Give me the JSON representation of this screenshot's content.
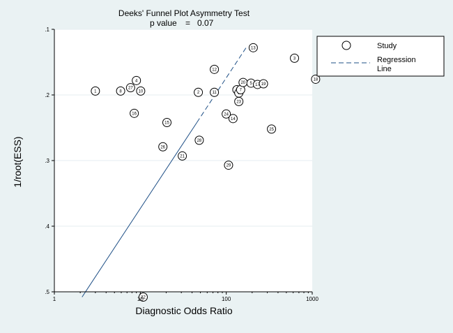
{
  "chart_data": {
    "type": "scatter",
    "title": "Deeks' Funnel Plot Asymmetry Test",
    "subtitle_label": "p value",
    "subtitle_sep": "=",
    "subtitle_value": "0.07",
    "xlabel": "Diagnostic Odds Ratio",
    "ylabel": "1/root(ESS)",
    "x_scale": "log10",
    "xlim": [
      1,
      1000
    ],
    "ylim": [
      0.1,
      0.5
    ],
    "y_reversed": true,
    "x_ticks": [
      1,
      10,
      100,
      1000
    ],
    "x_tick_labels": [
      "1",
      "10",
      "100",
      "1000"
    ],
    "y_ticks": [
      0.1,
      0.2,
      0.3,
      0.4,
      0.5
    ],
    "y_tick_labels": [
      ".1",
      ".2",
      ".3",
      ".4",
      ".5"
    ],
    "grid": "horizontal",
    "legend_position": "right",
    "series": [
      {
        "name": "Study",
        "marker": "open-circle",
        "points": [
          {
            "label": "1",
            "x": 3.0,
            "y": 0.194
          },
          {
            "label": "8",
            "x": 5.9,
            "y": 0.194
          },
          {
            "label": "27",
            "x": 7.7,
            "y": 0.189
          },
          {
            "label": "4",
            "x": 9.0,
            "y": 0.178
          },
          {
            "label": "10",
            "x": 10.1,
            "y": 0.194
          },
          {
            "label": "16",
            "x": 8.5,
            "y": 0.228
          },
          {
            "label": "15",
            "x": 20.4,
            "y": 0.242
          },
          {
            "label": "26",
            "x": 18.3,
            "y": 0.279
          },
          {
            "label": "21",
            "x": 30.8,
            "y": 0.293
          },
          {
            "label": "28",
            "x": 48.5,
            "y": 0.269
          },
          {
            "label": "2",
            "x": 47.3,
            "y": 0.196
          },
          {
            "label": "11",
            "x": 72.7,
            "y": 0.196
          },
          {
            "label": "12",
            "x": 72.7,
            "y": 0.161
          },
          {
            "label": "29",
            "x": 106.3,
            "y": 0.307
          },
          {
            "label": "24",
            "x": 99.9,
            "y": 0.229
          },
          {
            "label": "14",
            "x": 119.9,
            "y": 0.236
          },
          {
            "label": "6",
            "x": 133.0,
            "y": 0.192
          },
          {
            "label": "23",
            "x": 140.0,
            "y": 0.21
          },
          {
            "label": "9",
            "x": 140.0,
            "y": 0.197
          },
          {
            "label": "7",
            "x": 147.0,
            "y": 0.192
          },
          {
            "label": "20",
            "x": 157.0,
            "y": 0.181
          },
          {
            "label": "5",
            "x": 194.0,
            "y": 0.182
          },
          {
            "label": "17",
            "x": 231.0,
            "y": 0.184
          },
          {
            "label": "19",
            "x": 271.0,
            "y": 0.183
          },
          {
            "label": "13",
            "x": 206.0,
            "y": 0.128
          },
          {
            "label": "25",
            "x": 336.0,
            "y": 0.252
          },
          {
            "label": "3",
            "x": 622.0,
            "y": 0.144
          },
          {
            "label": "18",
            "x": 1095.0,
            "y": 0.176
          },
          {
            "label": "22",
            "x": 10.8,
            "y": 0.508
          }
        ]
      },
      {
        "name": "Regression Line",
        "style": "dashed",
        "color": "#1e4f86",
        "points": [
          {
            "x": 2.1,
            "y": 0.508
          },
          {
            "x": 170.0,
            "y": 0.128
          }
        ]
      }
    ]
  },
  "legend": {
    "study_label": "Study",
    "regression_label_line1": "Regression",
    "regression_label_line2": "Line"
  },
  "colors": {
    "background": "#eaf2f3",
    "plot_background": "#ffffff",
    "regression": "#1e4f86",
    "gridline": "#e6eef0",
    "marker_stroke": "#000000"
  }
}
